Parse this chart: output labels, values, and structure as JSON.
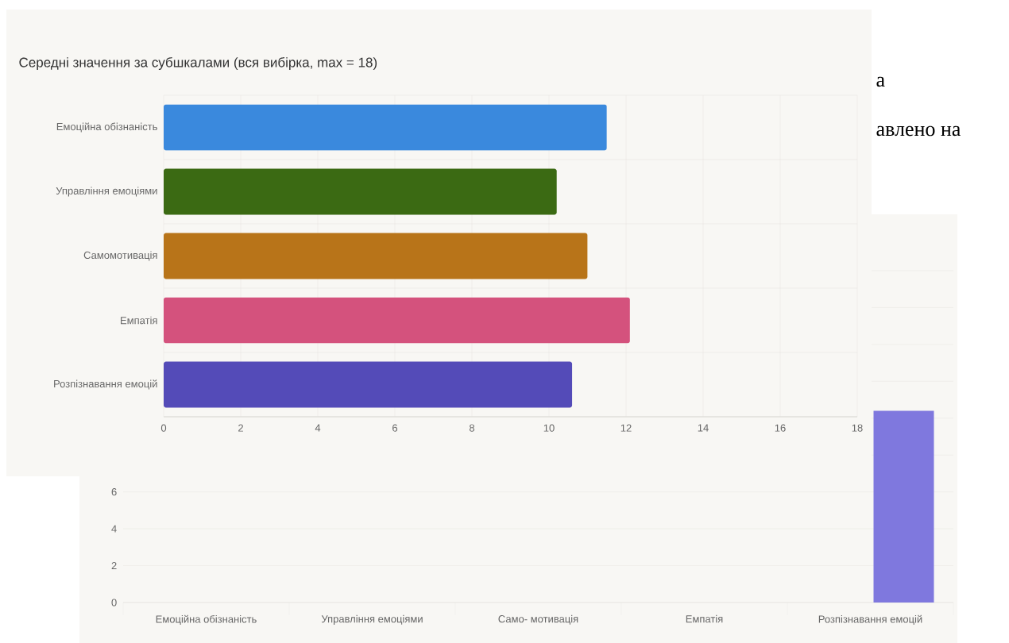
{
  "chart_data": [
    {
      "type": "bar",
      "orientation": "horizontal",
      "title": "Середні значення за субшкалами (вся вибірка, max = 18)",
      "categories": [
        "Емоційна обізнаність",
        "Управління емоціями",
        "Самомотивація",
        "Емпатія",
        "Розпізнавання емоцій"
      ],
      "values": [
        11.5,
        10.2,
        11.0,
        12.1,
        10.6
      ],
      "colors": [
        "#3a89dd",
        "#3b6a13",
        "#b87419",
        "#d4527d",
        "#544bb8"
      ],
      "xlim": [
        0,
        18
      ],
      "xticks": [
        0,
        2,
        4,
        6,
        8,
        10,
        12,
        14,
        16,
        18
      ],
      "grid": true
    },
    {
      "type": "bar",
      "categories": [
        "Емоційна обізнаність",
        "Управління емоціями",
        "Само- мотивація",
        "Емпатія",
        "Розпізнавання емоцій"
      ],
      "series": [
        {
          "color": "#1f9e77",
          "values": [
            null,
            null,
            null,
            null,
            null
          ]
        },
        {
          "color": "#7f78de",
          "values": [
            null,
            null,
            null,
            null,
            10.4
          ]
        }
      ],
      "ylim": [
        0,
        18
      ],
      "yticks": [
        0,
        2,
        4,
        6,
        {
          "value": 8,
          "label": null
        },
        {
          "value": 10,
          "label": null
        },
        {
          "value": 12,
          "label": null
        },
        {
          "value": 14,
          "label": null
        },
        {
          "value": 16,
          "label": null
        },
        {
          "value": 18,
          "label": null
        }
      ],
      "grid": "y",
      "annotations": [
        "а",
        "авлено на"
      ]
    }
  ]
}
